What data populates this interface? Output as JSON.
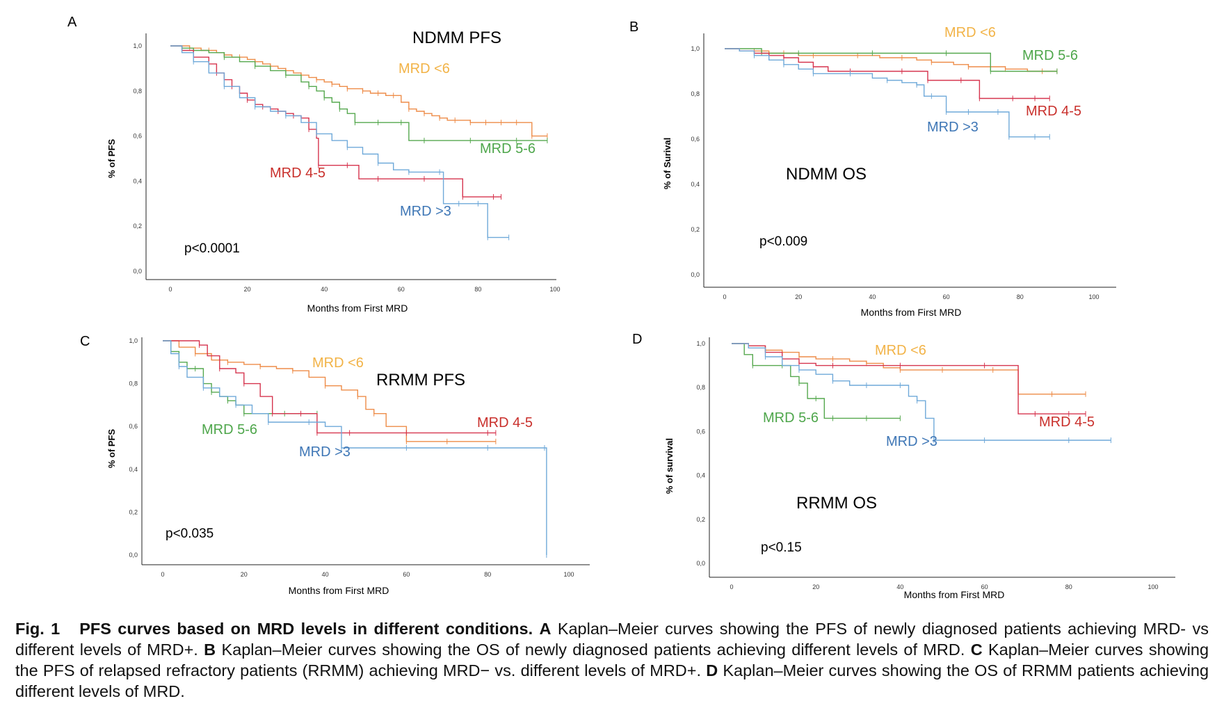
{
  "colors": {
    "mrd_lt6": "#EE8C48",
    "mrd_5_6": "#55A84E",
    "mrd_4_5": "#D6344E",
    "mrd_gt3": "#6FA9D9",
    "lbl_lt6": "#F2B347",
    "lbl_5_6": "#4EA64B",
    "lbl_4_5": "#C9302C",
    "lbl_gt3": "#3F77B6"
  },
  "caption": {
    "fig_label": "Fig. 1",
    "title": "PFS curves based on MRD levels in different conditions.",
    "a_letter": "A",
    "a_text": "Kaplan–Meier curves showing the PFS of newly diagnosed patients achieving MRD- vs different levels of MRD+.",
    "b_letter": "B",
    "b_text": "Kaplan–Meier curves showing the OS of newly diagnosed patients achieving different levels of MRD.",
    "c_letter": "C",
    "c_text": "Kaplan–Meier curves showing the PFS of relapsed refractory patients (RRMM) achieving MRD− vs. different levels of MRD+.",
    "d_letter": "D",
    "d_text": "Kaplan–Meier curves showing the OS of RRMM patients achieving different levels of MRD."
  },
  "chart_data": [
    {
      "panel": "A",
      "type": "line",
      "title": "NDMM PFS",
      "xlabel": "Months from First MRD",
      "ylabel": "% of PFS",
      "annotation": "p<0.0001",
      "xlim": [
        0,
        100
      ],
      "ylim": [
        0,
        1
      ],
      "xticks": [
        "0",
        "20",
        "40",
        "60",
        "80",
        "100"
      ],
      "yticks": [
        "0,0",
        "0,2",
        "0,4",
        "0,6",
        "0,8",
        "1,0"
      ],
      "series": [
        {
          "name": "MRD <6",
          "color_key": "mrd_lt6",
          "x": [
            0,
            2,
            5,
            8,
            10,
            12,
            14,
            16,
            18,
            20,
            22,
            24,
            26,
            28,
            30,
            32,
            34,
            36,
            38,
            40,
            42,
            44,
            46,
            48,
            50,
            52,
            54,
            56,
            58,
            60,
            62,
            64,
            66,
            68,
            70,
            72,
            74,
            76,
            78,
            80,
            82,
            84,
            86,
            88,
            90,
            92,
            94,
            96,
            98
          ],
          "y": [
            1.0,
            1.0,
            0.99,
            0.98,
            0.98,
            0.97,
            0.96,
            0.95,
            0.95,
            0.94,
            0.93,
            0.92,
            0.91,
            0.9,
            0.89,
            0.88,
            0.87,
            0.86,
            0.85,
            0.84,
            0.83,
            0.82,
            0.81,
            0.81,
            0.8,
            0.79,
            0.79,
            0.78,
            0.78,
            0.75,
            0.72,
            0.71,
            0.7,
            0.69,
            0.68,
            0.67,
            0.67,
            0.67,
            0.66,
            0.66,
            0.66,
            0.66,
            0.66,
            0.66,
            0.66,
            0.66,
            0.6,
            0.6,
            0.6
          ]
        },
        {
          "name": "MRD 5-6",
          "color_key": "mrd_5_6",
          "x": [
            0,
            3,
            6,
            10,
            14,
            18,
            22,
            26,
            30,
            34,
            36,
            38,
            40,
            42,
            44,
            46,
            48,
            50,
            54,
            58,
            60,
            62,
            66,
            72,
            78,
            84,
            90,
            96,
            98
          ],
          "y": [
            1.0,
            0.99,
            0.98,
            0.97,
            0.95,
            0.93,
            0.91,
            0.89,
            0.87,
            0.84,
            0.82,
            0.8,
            0.77,
            0.75,
            0.72,
            0.7,
            0.66,
            0.66,
            0.66,
            0.66,
            0.66,
            0.58,
            0.58,
            0.58,
            0.58,
            0.58,
            0.58,
            0.58,
            0.58
          ]
        },
        {
          "name": "MRD 4-5",
          "color_key": "mrd_4_5",
          "x": [
            0,
            3,
            6,
            10,
            12,
            14,
            16,
            18,
            20,
            22,
            24,
            26,
            28,
            30,
            32,
            34,
            36,
            38,
            38.5,
            42,
            46,
            49,
            54,
            60,
            66,
            72,
            76,
            80,
            84,
            86
          ],
          "y": [
            1.0,
            0.98,
            0.95,
            0.92,
            0.88,
            0.85,
            0.82,
            0.79,
            0.76,
            0.74,
            0.73,
            0.72,
            0.71,
            0.7,
            0.69,
            0.68,
            0.63,
            0.59,
            0.47,
            0.47,
            0.47,
            0.41,
            0.41,
            0.41,
            0.41,
            0.41,
            0.33,
            0.33,
            0.33,
            0.33
          ]
        },
        {
          "name": "MRD >3",
          "color_key": "mrd_gt3",
          "x": [
            0,
            3,
            6,
            10,
            14,
            18,
            22,
            26,
            30,
            34,
            38,
            42,
            46,
            50,
            54,
            58,
            62,
            66,
            70,
            71,
            75,
            78,
            80,
            82,
            82.5,
            88
          ],
          "y": [
            1.0,
            0.97,
            0.93,
            0.88,
            0.82,
            0.77,
            0.73,
            0.71,
            0.69,
            0.66,
            0.61,
            0.58,
            0.55,
            0.52,
            0.48,
            0.45,
            0.44,
            0.44,
            0.44,
            0.3,
            0.3,
            0.3,
            0.3,
            0.3,
            0.15,
            0.15
          ]
        }
      ]
    },
    {
      "panel": "B",
      "type": "line",
      "title": "NDMM OS",
      "xlabel": "Months from First MRD",
      "ylabel": "% of Surival",
      "annotation": "p<0.009",
      "xlim": [
        0,
        100
      ],
      "ylim": [
        0,
        1
      ],
      "xticks": [
        "0",
        "20",
        "40",
        "60",
        "80",
        "100"
      ],
      "yticks": [
        "0,0",
        "0,2",
        "0,4",
        "0,6",
        "0,8",
        "1,0"
      ],
      "series": [
        {
          "name": "MRD <6",
          "color_key": "mrd_lt6",
          "x": [
            0,
            4,
            8,
            12,
            16,
            20,
            24,
            30,
            36,
            42,
            48,
            52,
            56,
            62,
            66,
            70,
            76,
            82,
            86,
            90
          ],
          "y": [
            1.0,
            0.99,
            0.99,
            0.98,
            0.98,
            0.97,
            0.97,
            0.97,
            0.97,
            0.96,
            0.96,
            0.95,
            0.94,
            0.93,
            0.92,
            0.92,
            0.91,
            0.9,
            0.9,
            0.9
          ]
        },
        {
          "name": "MRD 5-6",
          "color_key": "mrd_5_6",
          "x": [
            0,
            6,
            10,
            14,
            20,
            30,
            40,
            50,
            60,
            70,
            72,
            80,
            90
          ],
          "y": [
            1.0,
            1.0,
            0.98,
            0.98,
            0.98,
            0.98,
            0.98,
            0.98,
            0.98,
            0.98,
            0.9,
            0.9,
            0.9
          ]
        },
        {
          "name": "MRD 4-5",
          "color_key": "mrd_4_5",
          "x": [
            0,
            4,
            8,
            12,
            16,
            20,
            24,
            28,
            34,
            40,
            48,
            52,
            55,
            60,
            64,
            68,
            69,
            74,
            78,
            80,
            84,
            88
          ],
          "y": [
            1.0,
            0.99,
            0.98,
            0.97,
            0.96,
            0.94,
            0.92,
            0.9,
            0.9,
            0.9,
            0.9,
            0.9,
            0.86,
            0.86,
            0.86,
            0.86,
            0.78,
            0.78,
            0.78,
            0.78,
            0.78,
            0.78
          ]
        },
        {
          "name": "MRD >3",
          "color_key": "mrd_gt3",
          "x": [
            0,
            4,
            8,
            12,
            16,
            20,
            24,
            30,
            34,
            40,
            44,
            48,
            52,
            54,
            56,
            58,
            60,
            62,
            66,
            70,
            74,
            76,
            77,
            80,
            84,
            88
          ],
          "y": [
            1.0,
            0.99,
            0.97,
            0.95,
            0.93,
            0.91,
            0.89,
            0.89,
            0.89,
            0.87,
            0.86,
            0.85,
            0.84,
            0.79,
            0.79,
            0.79,
            0.72,
            0.72,
            0.72,
            0.72,
            0.72,
            0.72,
            0.61,
            0.61,
            0.61,
            0.61
          ]
        }
      ]
    },
    {
      "panel": "C",
      "type": "line",
      "title": "RRMM PFS",
      "xlabel": "Months from First MRD",
      "ylabel": "% of PFS",
      "annotation": "p<0.035",
      "xlim": [
        0,
        100
      ],
      "ylim": [
        0,
        1
      ],
      "xticks": [
        "0",
        "20",
        "40",
        "60",
        "80",
        "100"
      ],
      "yticks": [
        "0,0",
        "0,2",
        "0,4",
        "0,6",
        "0,8",
        "1,0"
      ],
      "series": [
        {
          "name": "MRD <6",
          "color_key": "mrd_lt6",
          "x": [
            0,
            4,
            8,
            12,
            16,
            20,
            24,
            28,
            32,
            36,
            40,
            44,
            48,
            50,
            52,
            55,
            60,
            64,
            70,
            76,
            82
          ],
          "y": [
            1.0,
            0.97,
            0.94,
            0.91,
            0.9,
            0.89,
            0.88,
            0.87,
            0.86,
            0.83,
            0.79,
            0.77,
            0.74,
            0.68,
            0.66,
            0.6,
            0.53,
            0.53,
            0.53,
            0.53,
            0.53
          ]
        },
        {
          "name": "MRD 5-6",
          "color_key": "mrd_5_6",
          "x": [
            0,
            2,
            4,
            6,
            8,
            10,
            12,
            14,
            16,
            18,
            20,
            24,
            30,
            34,
            38
          ],
          "y": [
            1.0,
            0.95,
            0.9,
            0.87,
            0.87,
            0.8,
            0.76,
            0.74,
            0.72,
            0.7,
            0.66,
            0.66,
            0.66,
            0.66,
            0.66
          ]
        },
        {
          "name": "MRD 4-5",
          "color_key": "mrd_4_5",
          "x": [
            0,
            6,
            9,
            11,
            14,
            18,
            20,
            24,
            27,
            30,
            34,
            37,
            38,
            40,
            46,
            52,
            60,
            70,
            80,
            82
          ],
          "y": [
            1.0,
            1.0,
            0.98,
            0.93,
            0.87,
            0.85,
            0.8,
            0.74,
            0.66,
            0.66,
            0.66,
            0.66,
            0.57,
            0.57,
            0.57,
            0.57,
            0.57,
            0.57,
            0.57,
            0.57
          ]
        },
        {
          "name": "MRD >3",
          "color_key": "mrd_gt3",
          "x": [
            0,
            2,
            4,
            6,
            10,
            14,
            18,
            22,
            26,
            30,
            36,
            40,
            44,
            50,
            60,
            70,
            80,
            90,
            94,
            94.5
          ],
          "y": [
            1.0,
            0.94,
            0.88,
            0.83,
            0.78,
            0.74,
            0.7,
            0.66,
            0.62,
            0.62,
            0.62,
            0.6,
            0.5,
            0.5,
            0.5,
            0.5,
            0.5,
            0.5,
            0.5,
            0.0
          ]
        }
      ]
    },
    {
      "panel": "D",
      "type": "line",
      "title": "RRMM OS",
      "xlabel": "Months from First MRD",
      "ylabel": "% of survival",
      "annotation": "p<0.15",
      "xlim": [
        0,
        100
      ],
      "ylim": [
        0,
        1
      ],
      "xticks": [
        "0",
        "20",
        "40",
        "60",
        "80",
        "100"
      ],
      "yticks": [
        "0,0",
        "0,2",
        "0,4",
        "0,6",
        "0,8",
        "1,0"
      ],
      "series": [
        {
          "name": "MRD <6",
          "color_key": "mrd_lt6",
          "x": [
            0,
            4,
            8,
            12,
            16,
            20,
            24,
            28,
            32,
            36,
            40,
            46,
            50,
            56,
            62,
            66,
            68,
            72,
            76,
            80,
            84
          ],
          "y": [
            1.0,
            0.99,
            0.97,
            0.96,
            0.94,
            0.93,
            0.93,
            0.92,
            0.91,
            0.89,
            0.88,
            0.88,
            0.88,
            0.88,
            0.88,
            0.88,
            0.77,
            0.77,
            0.77,
            0.77,
            0.77
          ]
        },
        {
          "name": "MRD 5-6",
          "color_key": "mrd_5_6",
          "x": [
            0,
            3,
            5,
            8,
            12,
            14,
            16,
            18,
            20,
            22,
            24,
            28,
            32,
            36,
            40
          ],
          "y": [
            1.0,
            0.95,
            0.9,
            0.9,
            0.9,
            0.85,
            0.82,
            0.75,
            0.75,
            0.66,
            0.66,
            0.66,
            0.66,
            0.66,
            0.66
          ]
        },
        {
          "name": "MRD 4-5",
          "color_key": "mrd_4_5",
          "x": [
            0,
            4,
            8,
            12,
            16,
            20,
            24,
            30,
            40,
            50,
            60,
            68,
            72,
            76,
            80,
            84
          ],
          "y": [
            1.0,
            0.99,
            0.96,
            0.93,
            0.91,
            0.9,
            0.9,
            0.9,
            0.9,
            0.9,
            0.9,
            0.68,
            0.68,
            0.68,
            0.68,
            0.68
          ]
        },
        {
          "name": "MRD >3",
          "color_key": "mrd_gt3",
          "x": [
            0,
            4,
            8,
            12,
            16,
            20,
            24,
            28,
            32,
            36,
            40,
            42,
            44,
            46,
            48,
            50,
            60,
            70,
            80,
            90
          ],
          "y": [
            1.0,
            0.98,
            0.94,
            0.9,
            0.88,
            0.86,
            0.83,
            0.81,
            0.81,
            0.81,
            0.81,
            0.76,
            0.74,
            0.66,
            0.56,
            0.56,
            0.56,
            0.56,
            0.56,
            0.56
          ]
        }
      ]
    }
  ]
}
